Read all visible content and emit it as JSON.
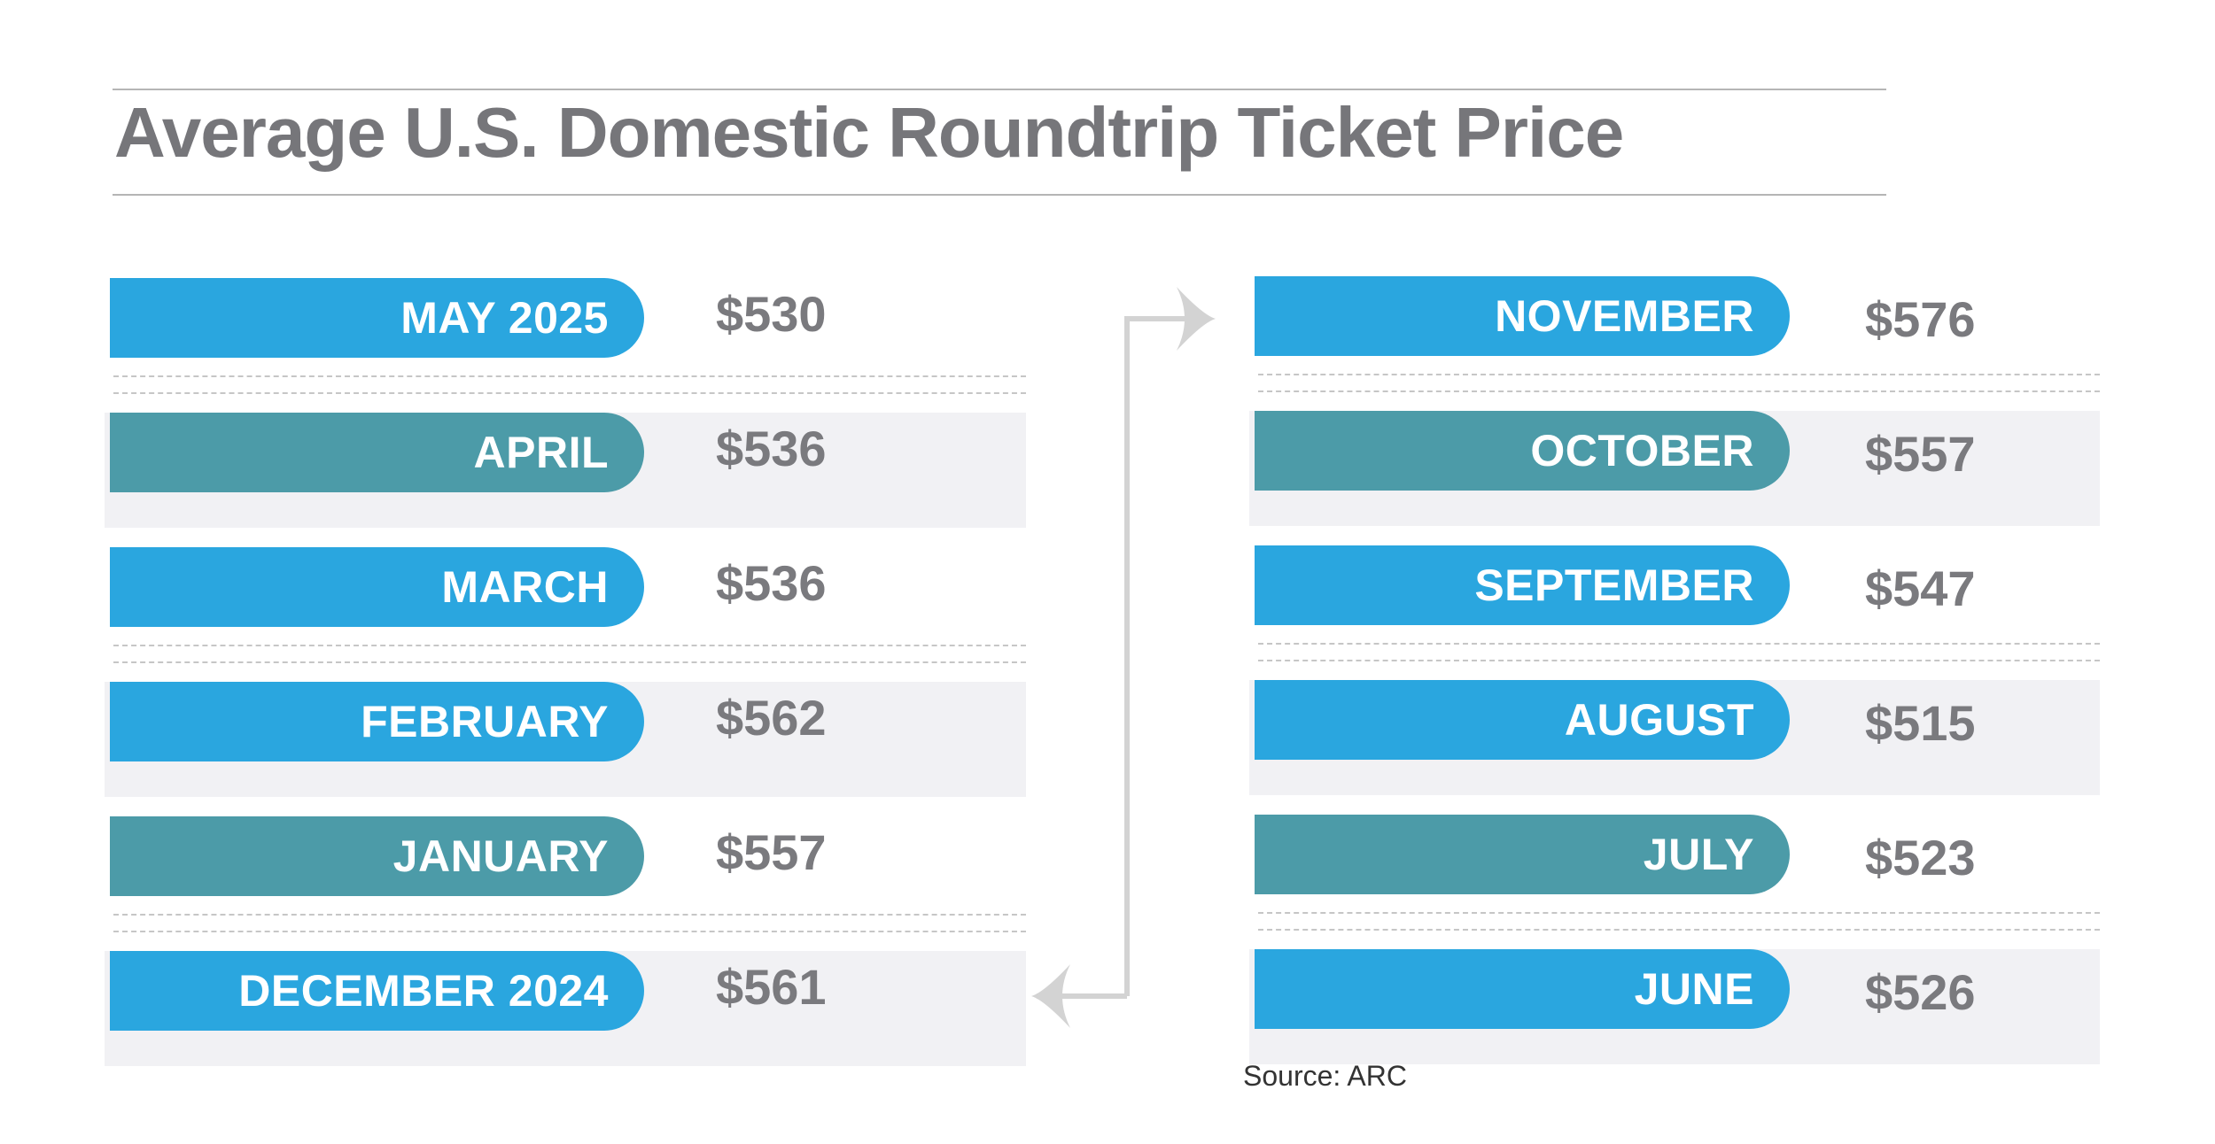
{
  "chart_data": {
    "type": "table",
    "title": "Average U.S. Domestic Roundtrip Ticket Price",
    "source": "Source: ARC",
    "unit": "$",
    "left_column": [
      {
        "label": "MAY 2025",
        "value": 530,
        "display": "$530",
        "color": "#2aa6df"
      },
      {
        "label": "APRIL",
        "value": 536,
        "display": "$536",
        "color": "#4c9ba8"
      },
      {
        "label": "MARCH",
        "value": 536,
        "display": "$536",
        "color": "#2aa6df"
      },
      {
        "label": "FEBRUARY",
        "value": 562,
        "display": "$562",
        "color": "#2aa6df"
      },
      {
        "label": "JANUARY",
        "value": 557,
        "display": "$557",
        "color": "#4c9ba8"
      },
      {
        "label": "DECEMBER 2024",
        "value": 561,
        "display": "$561",
        "color": "#2aa6df"
      }
    ],
    "right_column": [
      {
        "label": "NOVEMBER",
        "value": 576,
        "display": "$576",
        "color": "#2aa6df"
      },
      {
        "label": "OCTOBER",
        "value": 557,
        "display": "$557",
        "color": "#4c9ba8"
      },
      {
        "label": "SEPTEMBER",
        "value": 547,
        "display": "$547",
        "color": "#2aa6df"
      },
      {
        "label": "AUGUST",
        "value": 515,
        "display": "$515",
        "color": "#2aa6df"
      },
      {
        "label": "JULY",
        "value": 523,
        "display": "$523",
        "color": "#4c9ba8"
      },
      {
        "label": "JUNE",
        "value": 526,
        "display": "$526",
        "color": "#2aa6df"
      }
    ]
  },
  "colors": {
    "blue": "#2aa6df",
    "teal": "#4c9ba8",
    "shade": "#f1f1f4",
    "text_gray": "#7a7a7e",
    "arrow": "#d3d3d3"
  }
}
